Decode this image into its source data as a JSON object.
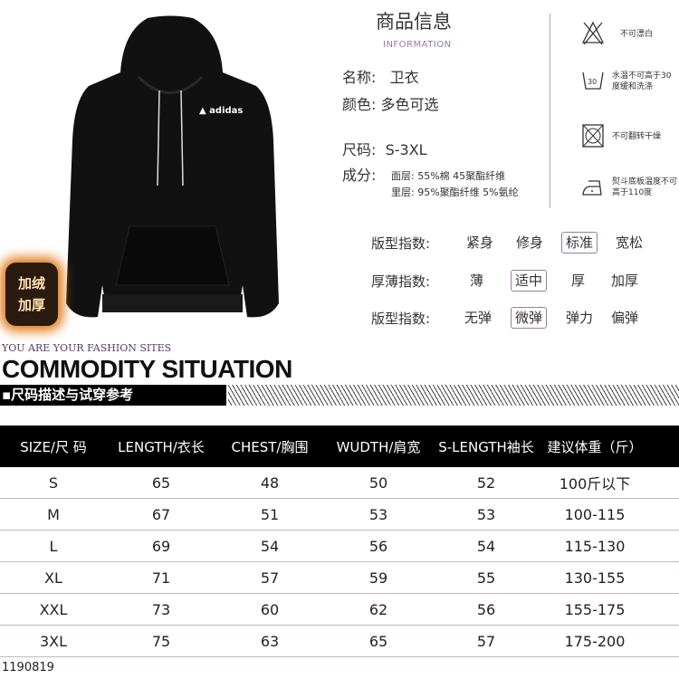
{
  "product": {
    "brand_logo": "adidas",
    "fleece_badge": [
      "加绒",
      "加厚"
    ],
    "code": "1190819"
  },
  "info": {
    "title": "商品信息",
    "subtitle": "INFORMATION",
    "name_label": "名称:",
    "name": "卫衣",
    "color_label": "颜色:",
    "color": "多色可选",
    "size_label": "尺码:",
    "size": "S-3XL",
    "composition_label": "成分:",
    "outer": "面层: 55%棉 45聚酯纤维",
    "inner": "里层: 95%聚酯纤维 5%氨纶"
  },
  "care": [
    {
      "icon": "no-bleach-icon",
      "text": "不可漂白"
    },
    {
      "icon": "wash-30-icon",
      "text": "水温不可高于30度缓和洗涤"
    },
    {
      "icon": "no-tumble-dry-icon",
      "text": "不可翻转干燥"
    },
    {
      "icon": "iron-icon",
      "text": "熨斗底板温度不可高于110度"
    }
  ],
  "fit": [
    {
      "label": "版型指数:",
      "options": [
        "紧身",
        "修身",
        "标准",
        "宽松"
      ],
      "selected": 2
    },
    {
      "label": "厚薄指数:",
      "options": [
        "薄",
        "适中",
        "厚",
        "加厚"
      ],
      "selected": 1
    },
    {
      "label": "版型指数:",
      "options": [
        "无弹",
        "微弹",
        "弹力",
        "偏弹"
      ],
      "selected": 1
    }
  ],
  "section": {
    "subtitle": "YOU ARE YOUR FASHION SITES",
    "title": "COMMODITY SITUATION",
    "bar": "▪尺码描述与试穿参考"
  },
  "table": {
    "headers": [
      "SIZE/尺 码",
      "LENGTH/衣长",
      "CHEST/胸围",
      "WUDTH/肩宽",
      "S-LENGTH袖长",
      "建议体重（斤）"
    ],
    "rows": [
      [
        "S",
        "65",
        "48",
        "50",
        "52",
        "100斤以下"
      ],
      [
        "M",
        "67",
        "51",
        "53",
        "53",
        "100-115"
      ],
      [
        "L",
        "69",
        "54",
        "56",
        "54",
        "115-130"
      ],
      [
        "XL",
        "71",
        "57",
        "59",
        "55",
        "130-155"
      ],
      [
        "XXL",
        "73",
        "60",
        "62",
        "56",
        "155-175"
      ],
      [
        "3XL",
        "75",
        "63",
        "65",
        "57",
        "175-200"
      ]
    ]
  },
  "colors": {
    "accent": "#9b7aa8",
    "header_bg": "#000000"
  }
}
